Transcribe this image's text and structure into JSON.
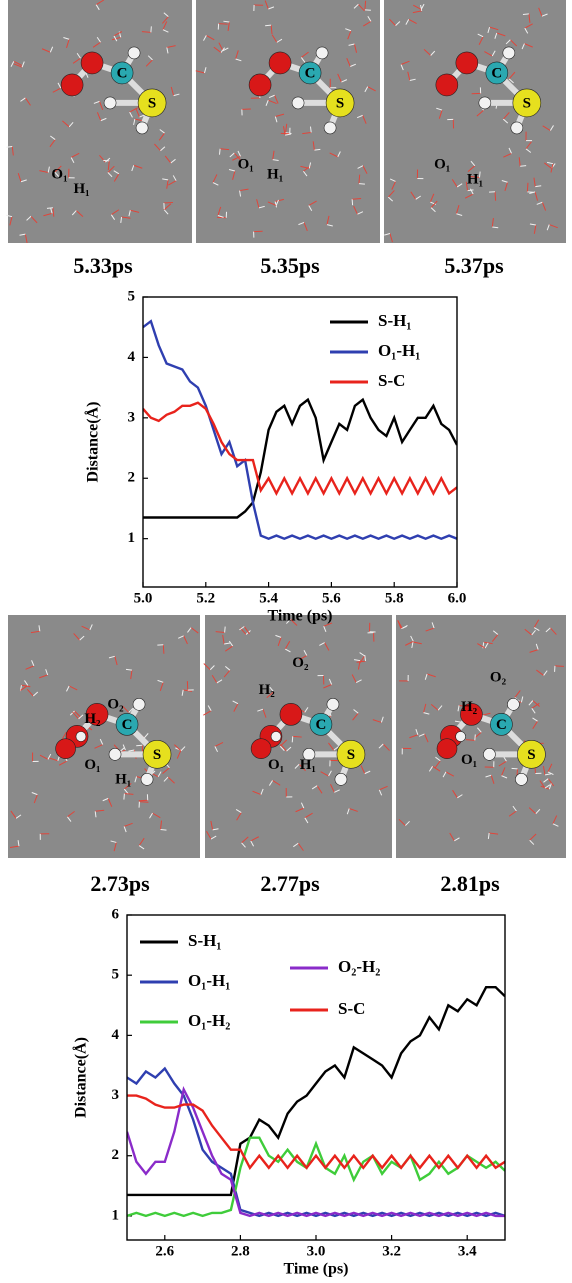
{
  "panels": [
    {
      "frames": [
        {
          "time": "5.33ps",
          "atoms": [
            "O₁",
            "H₁",
            "C",
            "S"
          ]
        },
        {
          "time": "5.35ps",
          "atoms": [
            "O₁",
            "H₁",
            "C",
            "S"
          ]
        },
        {
          "time": "5.37ps",
          "atoms": [
            "O₁",
            "H₁",
            "C",
            "S"
          ]
        }
      ]
    },
    {
      "frames": [
        {
          "time": "2.73ps",
          "atoms": [
            "O₂",
            "H₂",
            "O₁",
            "H₁",
            "C",
            "S"
          ]
        },
        {
          "time": "2.77ps",
          "atoms": [
            "O₂",
            "H₂",
            "O₁",
            "H₁",
            "C",
            "S"
          ]
        },
        {
          "time": "2.81ps",
          "atoms": [
            "O₂",
            "H₂",
            "O₁",
            "C",
            "S"
          ]
        }
      ]
    }
  ],
  "chart_data": [
    {
      "type": "line",
      "xlabel": "Time (ps)",
      "ylabel": "Distance(Å)",
      "x": [
        5.0,
        5.025,
        5.05,
        5.075,
        5.1,
        5.125,
        5.15,
        5.175,
        5.2,
        5.225,
        5.25,
        5.275,
        5.3,
        5.325,
        5.35,
        5.375,
        5.4,
        5.425,
        5.45,
        5.475,
        5.5,
        5.525,
        5.55,
        5.575,
        5.6,
        5.625,
        5.65,
        5.675,
        5.7,
        5.725,
        5.75,
        5.775,
        5.8,
        5.825,
        5.85,
        5.875,
        5.9,
        5.925,
        5.95,
        5.975,
        6.0
      ],
      "xlim": [
        5.0,
        6.0
      ],
      "xticks": [
        {
          "value": 5.0,
          "label": "5.0"
        },
        5.2,
        5.4,
        5.6,
        5.8,
        {
          "value": 6.0,
          "label": "6.0"
        }
      ],
      "ylim": [
        0.2,
        5.0
      ],
      "yticks": [
        1,
        2,
        3,
        4,
        5
      ],
      "series": [
        {
          "name": "S-H₁",
          "color": "#000000",
          "values": [
            1.35,
            1.35,
            1.35,
            1.35,
            1.35,
            1.35,
            1.35,
            1.35,
            1.35,
            1.35,
            1.35,
            1.35,
            1.35,
            1.45,
            1.6,
            2.1,
            2.8,
            3.1,
            3.2,
            2.9,
            3.2,
            3.3,
            3.0,
            2.3,
            2.6,
            2.9,
            2.8,
            3.2,
            3.3,
            3.0,
            2.8,
            2.7,
            3.0,
            2.6,
            2.8,
            3.0,
            3.0,
            3.2,
            2.9,
            2.8,
            2.55
          ]
        },
        {
          "name": "O₁-H₁",
          "color": "#2f3fb0",
          "values": [
            4.5,
            4.6,
            4.2,
            3.9,
            3.85,
            3.8,
            3.6,
            3.5,
            3.2,
            2.8,
            2.4,
            2.6,
            2.2,
            2.3,
            1.6,
            1.05,
            1.0,
            1.05,
            1.0,
            1.05,
            1.0,
            1.05,
            1.0,
            1.05,
            1.0,
            1.05,
            1.0,
            1.05,
            1.0,
            1.05,
            1.0,
            1.05,
            1.0,
            1.05,
            1.0,
            1.05,
            1.0,
            1.05,
            1.0,
            1.05,
            1.0
          ]
        },
        {
          "name": "S-C",
          "color": "#e8231c",
          "values": [
            3.15,
            3.0,
            2.95,
            3.05,
            3.1,
            3.2,
            3.2,
            3.25,
            3.15,
            2.9,
            2.6,
            2.4,
            2.3,
            2.3,
            2.3,
            1.8,
            2.0,
            1.75,
            2.0,
            1.75,
            2.0,
            1.75,
            2.0,
            1.75,
            2.0,
            1.75,
            2.0,
            1.75,
            2.0,
            1.75,
            2.0,
            1.75,
            2.0,
            1.75,
            2.0,
            1.75,
            2.0,
            1.75,
            2.0,
            1.75,
            1.85
          ]
        }
      ]
    },
    {
      "type": "line",
      "xlabel": "Time (ps)",
      "ylabel": "Distance(Å)",
      "x": [
        2.5,
        2.525,
        2.55,
        2.575,
        2.6,
        2.625,
        2.65,
        2.675,
        2.7,
        2.725,
        2.75,
        2.775,
        2.8,
        2.825,
        2.85,
        2.875,
        2.9,
        2.925,
        2.95,
        2.975,
        3.0,
        3.025,
        3.05,
        3.075,
        3.1,
        3.125,
        3.15,
        3.175,
        3.2,
        3.225,
        3.25,
        3.275,
        3.3,
        3.325,
        3.35,
        3.375,
        3.4,
        3.425,
        3.45,
        3.475,
        3.5
      ],
      "xlim": [
        2.5,
        3.5
      ],
      "xticks": [
        2.6,
        2.8,
        {
          "value": 3.0,
          "label": "3.0"
        },
        3.2,
        3.4
      ],
      "ylim": [
        0.6,
        6.0
      ],
      "yticks": [
        1,
        2,
        3,
        4,
        5,
        6
      ],
      "series": [
        {
          "name": "S-H₁",
          "color": "#000000",
          "values": [
            1.35,
            1.35,
            1.35,
            1.35,
            1.35,
            1.35,
            1.35,
            1.35,
            1.35,
            1.35,
            1.35,
            1.35,
            2.2,
            2.3,
            2.6,
            2.5,
            2.3,
            2.7,
            2.9,
            3.0,
            3.2,
            3.4,
            3.5,
            3.3,
            3.8,
            3.7,
            3.6,
            3.5,
            3.3,
            3.7,
            3.9,
            4.0,
            4.3,
            4.1,
            4.5,
            4.4,
            4.6,
            4.5,
            4.8,
            4.8,
            4.65
          ]
        },
        {
          "name": "O₁-H₁",
          "color": "#2f3fb0",
          "values": [
            3.3,
            3.2,
            3.4,
            3.3,
            3.45,
            3.2,
            3.0,
            2.6,
            2.1,
            1.9,
            1.8,
            1.7,
            1.1,
            1.05,
            1.0,
            1.05,
            1.0,
            1.05,
            1.0,
            1.05,
            1.0,
            1.05,
            1.0,
            1.05,
            1.0,
            1.05,
            1.0,
            1.05,
            1.0,
            1.05,
            1.0,
            1.05,
            1.0,
            1.05,
            1.0,
            1.05,
            1.0,
            1.05,
            1.0,
            1.05,
            1.0
          ]
        },
        {
          "name": "O₁-H₂",
          "color": "#3fcc3a",
          "values": [
            1.0,
            1.05,
            1.0,
            1.05,
            1.0,
            1.05,
            1.0,
            1.05,
            1.0,
            1.05,
            1.05,
            1.1,
            1.8,
            2.3,
            2.3,
            2.0,
            1.9,
            2.1,
            1.9,
            1.8,
            2.2,
            1.8,
            1.7,
            2.0,
            1.6,
            1.9,
            2.0,
            1.7,
            1.9,
            1.8,
            2.0,
            1.6,
            1.7,
            1.9,
            1.7,
            1.8,
            2.0,
            1.9,
            1.8,
            1.9,
            1.75
          ]
        },
        {
          "name": "O₂-H₂",
          "color": "#8a2bc9",
          "values": [
            2.4,
            1.9,
            1.7,
            1.9,
            1.9,
            2.4,
            3.1,
            2.8,
            2.4,
            2.0,
            1.7,
            1.6,
            1.05,
            1.0,
            1.05,
            1.0,
            1.05,
            1.0,
            1.05,
            1.0,
            1.05,
            1.0,
            1.05,
            1.0,
            1.05,
            1.0,
            1.05,
            1.0,
            1.05,
            1.0,
            1.05,
            1.0,
            1.05,
            1.0,
            1.05,
            1.0,
            1.05,
            1.0,
            1.05,
            1.0,
            1.0
          ]
        },
        {
          "name": "S-C",
          "color": "#e8231c",
          "values": [
            3.0,
            3.0,
            2.95,
            2.85,
            2.8,
            2.8,
            2.85,
            2.85,
            2.75,
            2.5,
            2.3,
            2.1,
            2.1,
            1.8,
            2.0,
            1.8,
            2.0,
            1.8,
            2.0,
            1.8,
            2.0,
            1.8,
            2.0,
            1.8,
            2.0,
            1.8,
            2.0,
            1.8,
            2.0,
            1.8,
            2.0,
            1.8,
            2.0,
            1.8,
            2.0,
            1.8,
            2.0,
            1.8,
            2.0,
            1.8,
            1.9
          ]
        }
      ]
    }
  ]
}
